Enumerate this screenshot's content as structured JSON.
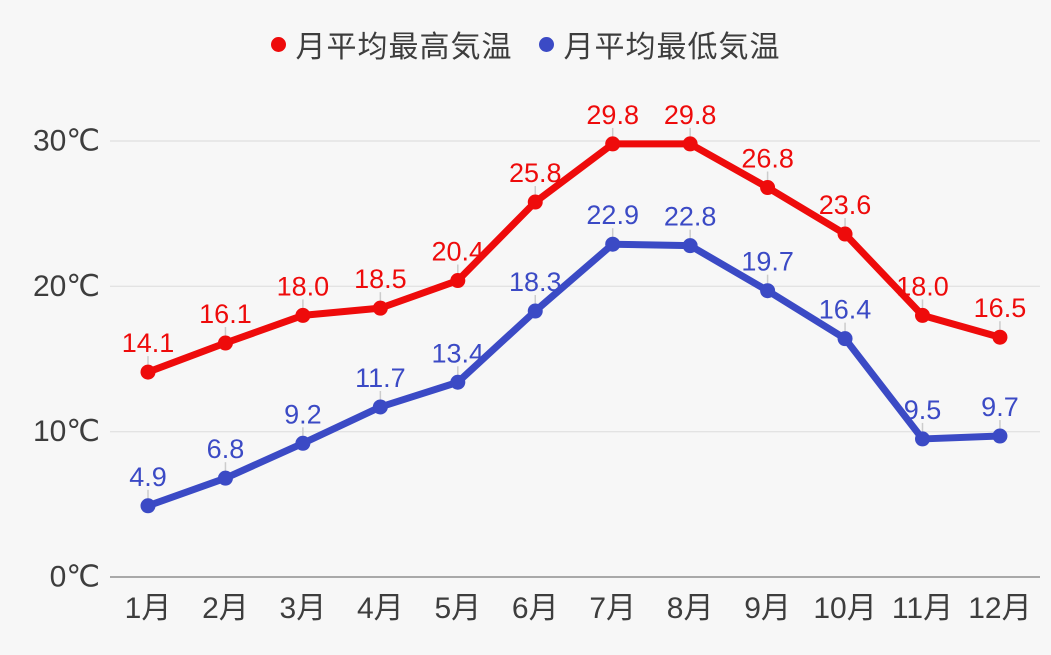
{
  "legend": {
    "items": [
      {
        "label": "月平均最高気温",
        "color": "#ee0b0b"
      },
      {
        "label": "月平均最低気温",
        "color": "#3b4ac5"
      }
    ]
  },
  "chart_data": {
    "type": "line",
    "categories": [
      "1月",
      "2月",
      "3月",
      "4月",
      "5月",
      "6月",
      "7月",
      "8月",
      "9月",
      "10月",
      "11月",
      "12月"
    ],
    "series": [
      {
        "name": "月平均最高気温",
        "color": "#ee0b0b",
        "values": [
          14.1,
          16.1,
          18.0,
          18.5,
          20.4,
          25.8,
          29.8,
          29.8,
          26.8,
          23.6,
          18.0,
          16.5
        ],
        "labels": [
          "14.1",
          "16.1",
          "18.0",
          "18.5",
          "20.4",
          "25.8",
          "29.8",
          "29.8",
          "26.8",
          "23.6",
          "18.0",
          "16.5"
        ]
      },
      {
        "name": "月平均最低気温",
        "color": "#3b4ac5",
        "values": [
          4.9,
          6.8,
          9.2,
          11.7,
          13.4,
          18.3,
          22.9,
          22.8,
          19.7,
          16.4,
          9.5,
          9.7
        ],
        "labels": [
          "4.9",
          "6.8",
          "9.2",
          "11.7",
          "13.4",
          "18.3",
          "22.9",
          "22.8",
          "19.7",
          "16.4",
          "9.5",
          "9.7"
        ]
      }
    ],
    "y_ticks": [
      {
        "value": 0,
        "label": "0℃"
      },
      {
        "value": 10,
        "label": "10℃"
      },
      {
        "value": 20,
        "label": "20℃"
      },
      {
        "value": 30,
        "label": "30℃"
      }
    ],
    "ylim": [
      0,
      33
    ],
    "xlabel": "",
    "ylabel": "",
    "title": "",
    "grid": "horizontal",
    "legend_position": "top",
    "data_labels": true
  },
  "style": {
    "background": "#f7f7f7",
    "axis_text_color": "#3d3d3d",
    "gridline_color": "#e3e3e3",
    "zero_line_color": "#a9a9a9",
    "leader_line_color": "#cccccc"
  }
}
